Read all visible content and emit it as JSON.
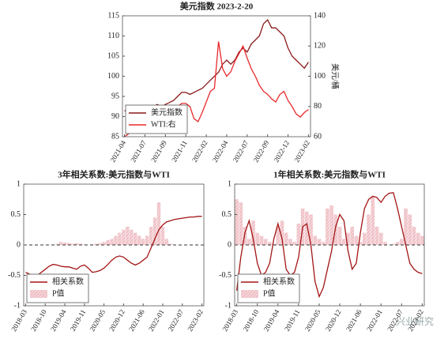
{
  "chart_data": [
    {
      "type": "line",
      "title": "美元指数 2023-2-20",
      "y2label": "美元/桶",
      "categories": [
        "2021-04",
        null,
        null,
        null,
        null,
        "2021-07",
        null,
        null,
        null,
        null,
        "2021-09",
        null,
        null,
        null,
        null,
        "2021-11",
        null,
        null,
        null,
        null,
        "2022-02",
        null,
        null,
        null,
        null,
        "2022-04",
        null,
        null,
        null,
        null,
        "2022-07",
        null,
        null,
        null,
        null,
        "2022-09",
        null,
        null,
        null,
        null,
        "2022-12",
        null,
        null,
        null,
        null,
        "2023-02"
      ],
      "series": [
        {
          "name": "美元指数",
          "type": "line",
          "color": "#8b1a1a",
          "values": [
            91.5,
            91,
            90.5,
            90,
            90.5,
            91,
            92,
            92.5,
            93,
            92.5,
            93,
            93.5,
            94,
            95,
            96,
            96,
            95.5,
            96,
            96.5,
            97,
            98,
            99,
            100,
            101,
            103,
            104,
            103,
            104,
            106,
            107,
            106,
            108,
            109,
            110,
            113,
            114,
            112,
            112,
            111,
            110,
            107,
            105,
            104,
            103,
            102,
            103.5
          ]
        },
        {
          "name": "WTI:右",
          "type": "line",
          "axis": "y2",
          "color": "#e8282b",
          "values": [
            60,
            62,
            64,
            66,
            65,
            68,
            72,
            74,
            72,
            70,
            68,
            72,
            75,
            80,
            82,
            82,
            80,
            72,
            70,
            76,
            83,
            90,
            92,
            123,
            105,
            100,
            103,
            110,
            115,
            120,
            112,
            105,
            100,
            94,
            90,
            88,
            85,
            83,
            88,
            90,
            84,
            80,
            75,
            73,
            76,
            78
          ]
        }
      ],
      "ylim": [
        85,
        115
      ],
      "yticks": [
        85,
        90,
        95,
        100,
        105,
        110,
        115
      ],
      "y2lim": [
        60,
        140
      ],
      "y2ticks": [
        60,
        80,
        100,
        120,
        140
      ],
      "legend": "lower left"
    },
    {
      "type": "line",
      "title": "3年相关系数:美元指数与WTI",
      "categories": [
        "2018-03",
        null,
        null,
        null,
        null,
        "2018-10",
        null,
        null,
        null,
        null,
        "2019-04",
        null,
        null,
        null,
        null,
        "2019-11",
        null,
        null,
        null,
        null,
        "2020-05",
        null,
        null,
        null,
        null,
        "2020-12",
        null,
        null,
        null,
        null,
        "2021-06",
        null,
        null,
        null,
        null,
        "2022-01",
        null,
        null,
        null,
        null,
        "2022-07",
        null,
        null,
        null,
        null,
        "2023-02"
      ],
      "series": [
        {
          "name": "P值",
          "type": "bar",
          "color": "#e8a0a8",
          "values": [
            0,
            0,
            0,
            0,
            0,
            0,
            0,
            0,
            0.02,
            0.05,
            0.04,
            0.03,
            0.02,
            0.03,
            0.02,
            0.01,
            0,
            0.01,
            0.02,
            0.03,
            0.05,
            0.08,
            0.1,
            0.15,
            0.2,
            0.25,
            0.3,
            0.25,
            0.2,
            0.15,
            0.1,
            0.15,
            0.3,
            0.45,
            0.7,
            0.3,
            0.1,
            0.02,
            0,
            0,
            0,
            0,
            0,
            0,
            0,
            0
          ]
        },
        {
          "name": "相关系数",
          "type": "line",
          "color": "#a31515",
          "values": [
            -0.45,
            -0.48,
            -0.5,
            -0.5,
            -0.45,
            -0.4,
            -0.35,
            -0.32,
            -0.33,
            -0.35,
            -0.36,
            -0.36,
            -0.38,
            -0.4,
            -0.35,
            -0.33,
            -0.38,
            -0.45,
            -0.44,
            -0.42,
            -0.38,
            -0.32,
            -0.25,
            -0.2,
            -0.18,
            -0.2,
            -0.25,
            -0.3,
            -0.33,
            -0.3,
            -0.25,
            -0.2,
            -0.05,
            0.1,
            0.25,
            0.33,
            0.38,
            0.4,
            0.42,
            0.43,
            0.44,
            0.45,
            0.46,
            0.46,
            0.47,
            0.47
          ]
        }
      ],
      "ylim": [
        -1,
        1
      ],
      "yticks": [
        -1,
        -0.5,
        0,
        0.5,
        1
      ],
      "zero_line": true,
      "legend": "lower left"
    },
    {
      "type": "line",
      "title": "1年相关系数:美元指数与WTI",
      "categories": [
        "2018-03",
        null,
        null,
        null,
        null,
        "2018-10",
        null,
        null,
        null,
        null,
        "2019-04",
        null,
        null,
        null,
        null,
        "2019-11",
        null,
        null,
        null,
        null,
        "2020-05",
        null,
        null,
        null,
        null,
        "2020-12",
        null,
        null,
        null,
        null,
        "2021-06",
        null,
        null,
        null,
        null,
        "2022-01",
        null,
        null,
        null,
        null,
        "2022-07",
        null,
        null,
        null,
        null,
        "2023-02"
      ],
      "series": [
        {
          "name": "P值",
          "type": "bar",
          "color": "#e8a0a8",
          "values": [
            0.75,
            0.7,
            0.3,
            0.1,
            0.4,
            0.2,
            0.15,
            0.1,
            0.05,
            0.02,
            0.3,
            0.4,
            0.2,
            0.1,
            0.05,
            0.35,
            0.6,
            0.55,
            0.5,
            0.15,
            0.1,
            0.05,
            0.6,
            0.65,
            0.5,
            0.3,
            0.1,
            0.2,
            0.3,
            0.15,
            0.05,
            0.2,
            0.5,
            0.8,
            0.3,
            0.2,
            0.05,
            0,
            0.02,
            0.05,
            0.1,
            0.6,
            0.5,
            0.3,
            0.2,
            0.15
          ]
        },
        {
          "name": "相关系数",
          "type": "line",
          "color": "#a31515",
          "values": [
            -0.75,
            -0.2,
            0.2,
            0.4,
            0.1,
            -0.3,
            -0.5,
            -0.45,
            -0.3,
            0.1,
            0.35,
            0.1,
            -0.4,
            -0.5,
            -0.45,
            -0.2,
            0.3,
            0.35,
            0,
            -0.6,
            -0.85,
            -0.7,
            -0.4,
            -0.1,
            0.3,
            0.5,
            0.4,
            -0.1,
            -0.4,
            -0.3,
            0.2,
            0.6,
            0.75,
            0.8,
            0.78,
            0.7,
            0.8,
            0.85,
            0.86,
            0.6,
            0.3,
            0,
            -0.3,
            -0.4,
            -0.45,
            -0.47
          ]
        }
      ],
      "ylim": [
        -1,
        1
      ],
      "yticks": [
        -1,
        -0.5,
        0,
        0.5,
        1
      ],
      "zero_line": true,
      "legend": "lower left"
    }
  ],
  "watermark": "兴业研究"
}
